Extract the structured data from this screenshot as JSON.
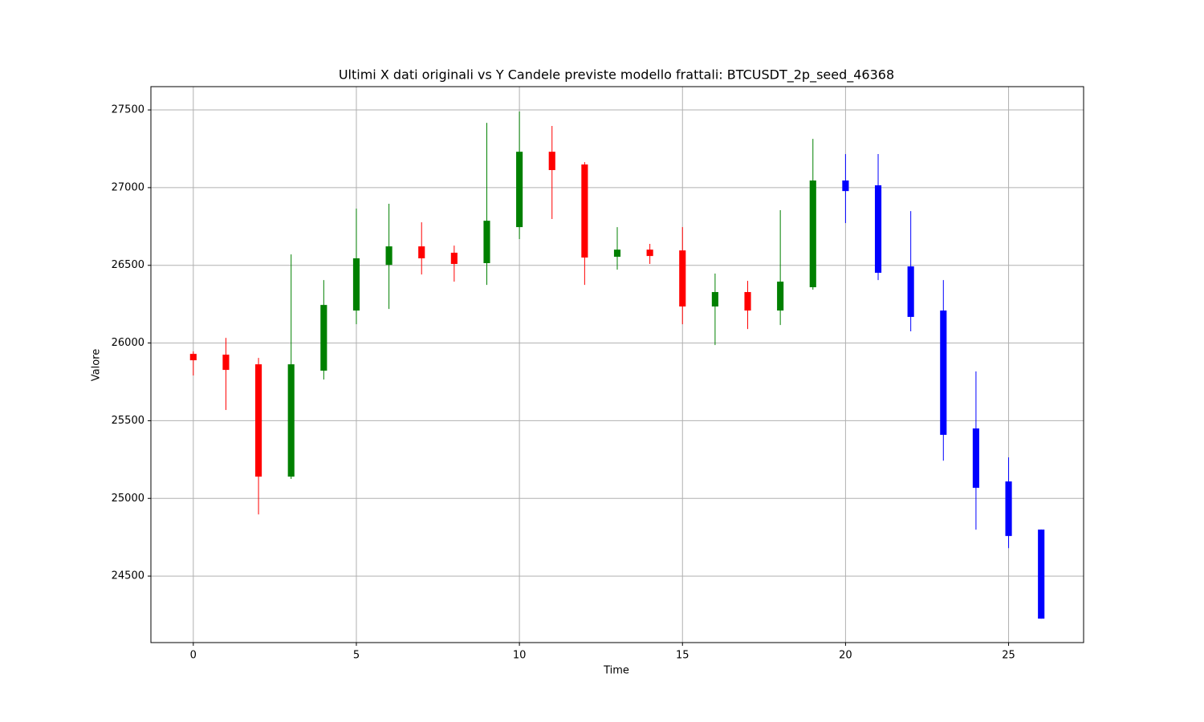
{
  "chart_data": {
    "type": "candlestick",
    "title": "Ultimi X dati originali vs Y Candele previste modello frattali: BTCUSDT_2p_seed_46368",
    "xlabel": "Time",
    "ylabel": "Valore",
    "x": [
      0,
      1,
      2,
      3,
      4,
      5,
      6,
      7,
      8,
      9,
      10,
      11,
      12,
      13,
      14,
      15,
      16,
      17,
      18,
      19,
      20,
      21,
      22,
      23,
      24,
      25,
      26
    ],
    "open": [
      25930,
      25925,
      25863,
      25140,
      25822,
      26209,
      26503,
      26622,
      26581,
      26514,
      26746,
      27231,
      27149,
      26555,
      26601,
      26596,
      26235,
      26328,
      26209,
      26359,
      27046,
      27015,
      26493,
      26209,
      25450,
      25109,
      24799
    ],
    "high": [
      25946,
      26033,
      25904,
      26570,
      26405,
      26865,
      26896,
      26777,
      26627,
      27417,
      27490,
      27397,
      27164,
      26746,
      26638,
      26746,
      26447,
      26400,
      26855,
      27314,
      27216,
      27216,
      26849,
      26405,
      25817,
      25264,
      24799
    ],
    "low": [
      25791,
      25569,
      24897,
      25125,
      25765,
      26121,
      26219,
      26441,
      26395,
      26374,
      26669,
      26798,
      26374,
      26472,
      26509,
      26121,
      25987,
      26090,
      26116,
      26343,
      26772,
      26405,
      26075,
      25243,
      24799,
      24680,
      24226
    ],
    "close": [
      25889,
      25827,
      25140,
      25863,
      26245,
      26545,
      26622,
      26545,
      26509,
      26787,
      27231,
      27113,
      26550,
      26601,
      26560,
      26235,
      26328,
      26209,
      26395,
      27046,
      26978,
      26452,
      26168,
      25409,
      25068,
      24758,
      24226
    ],
    "colors": [
      "red",
      "red",
      "red",
      "green",
      "green",
      "green",
      "green",
      "red",
      "red",
      "green",
      "green",
      "red",
      "red",
      "green",
      "red",
      "red",
      "green",
      "red",
      "green",
      "green",
      "blue",
      "blue",
      "blue",
      "blue",
      "blue",
      "blue",
      "blue"
    ],
    "xlim": [
      -1.3,
      27.3
    ],
    "ylim": [
      24072,
      27650
    ],
    "xticks": [
      0,
      5,
      10,
      15,
      20,
      25
    ],
    "yticks": [
      24500,
      25000,
      25500,
      26000,
      26500,
      27000,
      27500
    ],
    "grid": true
  }
}
